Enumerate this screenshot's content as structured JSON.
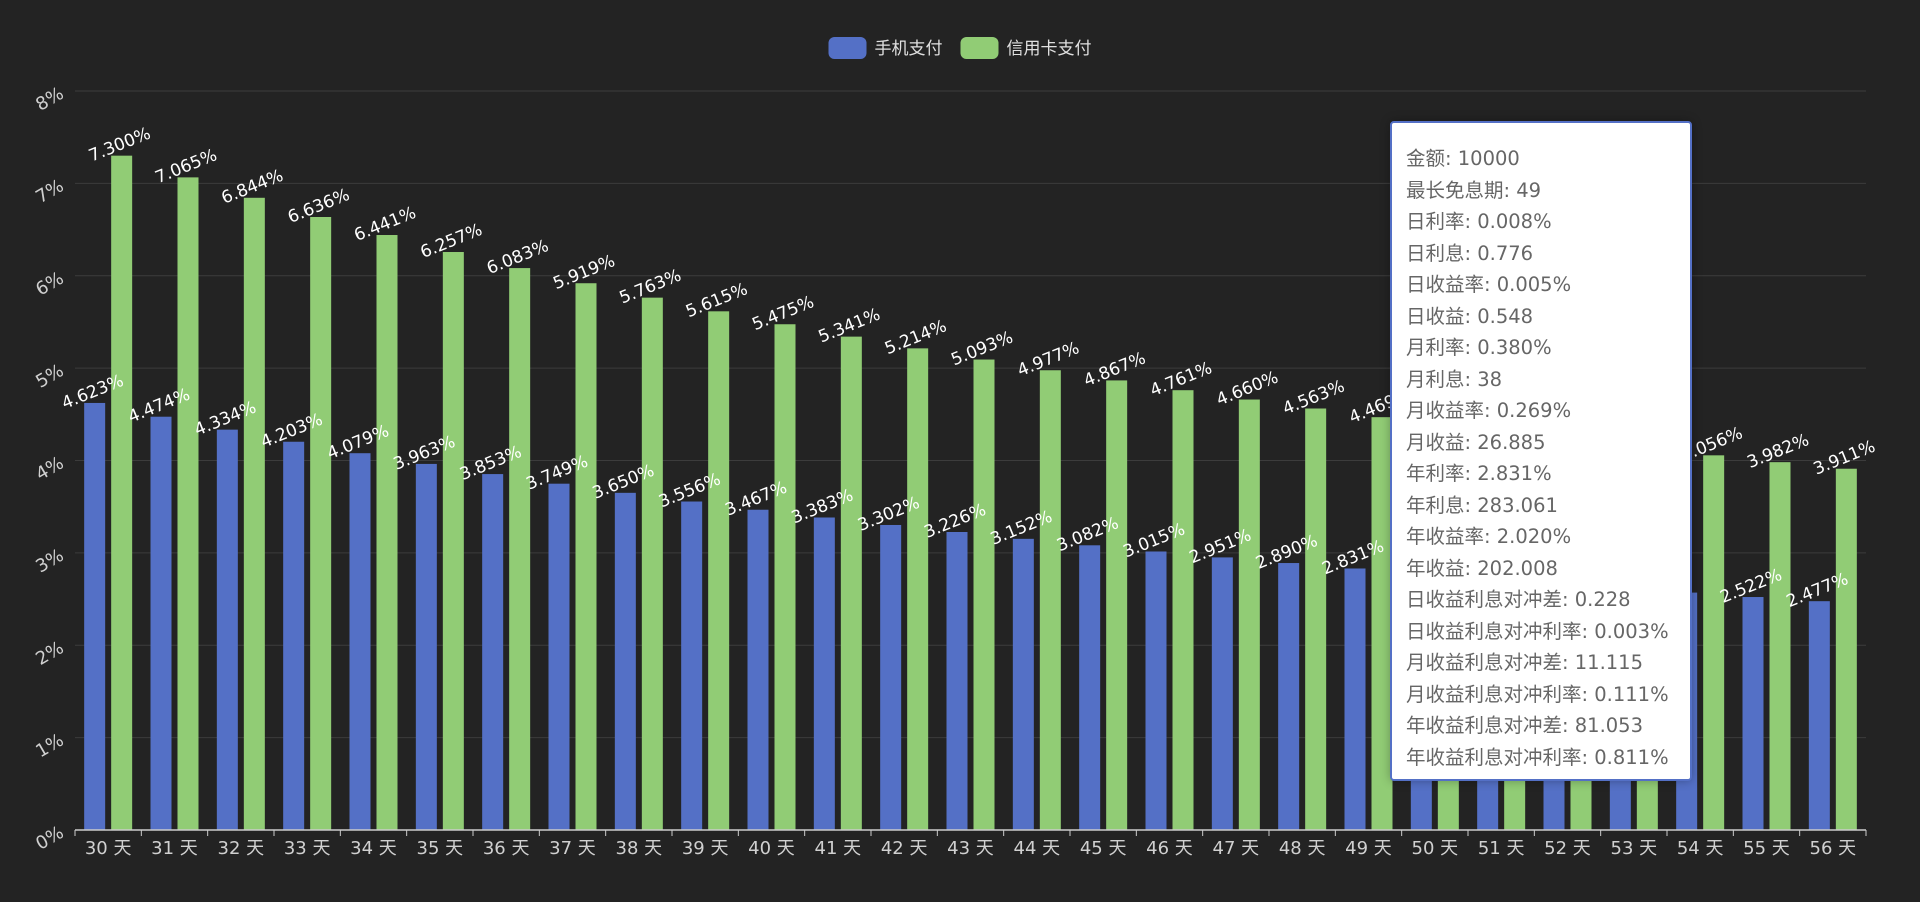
{
  "chart_data": {
    "type": "bar",
    "categories": [
      "30 天",
      "31 天",
      "32 天",
      "33 天",
      "34 天",
      "35 天",
      "36 天",
      "37 天",
      "38 天",
      "39 天",
      "40 天",
      "41 天",
      "42 天",
      "43 天",
      "44 天",
      "45 天",
      "46 天",
      "47 天",
      "48 天",
      "49 天",
      "50 天",
      "51 天",
      "52 天",
      "53 天",
      "54 天",
      "55 天",
      "56 天"
    ],
    "series": [
      {
        "name": "手机支付",
        "color": "#5470c6",
        "values": [
          4.623,
          4.474,
          4.334,
          4.203,
          4.079,
          3.963,
          3.853,
          3.749,
          3.65,
          3.556,
          3.467,
          3.383,
          3.302,
          3.226,
          3.152,
          3.082,
          3.015,
          2.951,
          2.89,
          2.831,
          2.775,
          2.721,
          2.67,
          2.62,
          2.57,
          2.522,
          2.477
        ],
        "labels": [
          "4.623%",
          "4.474%",
          "4.334%",
          "4.203%",
          "4.079%",
          "3.963%",
          "3.853%",
          "3.749%",
          "3.650%",
          "3.556%",
          "3.467%",
          "3.383%",
          "3.302%",
          "3.226%",
          "3.152%",
          "3.082%",
          "3.015%",
          "2.951%",
          "2.890%",
          "2.831%",
          "",
          "",
          "",
          "",
          "",
          "2.522%",
          "2.477%"
        ]
      },
      {
        "name": "信用卡支付",
        "color": "#91cc75",
        "values": [
          7.3,
          7.065,
          6.844,
          6.636,
          6.441,
          6.257,
          6.083,
          5.919,
          5.763,
          5.615,
          5.475,
          5.341,
          5.214,
          5.093,
          4.977,
          4.867,
          4.761,
          4.66,
          4.563,
          4.469,
          4.38,
          4.294,
          4.211,
          4.132,
          4.056,
          3.982,
          3.911
        ],
        "labels": [
          "7.300%",
          "7.065%",
          "6.844%",
          "6.636%",
          "6.441%",
          "6.257%",
          "6.083%",
          "5.919%",
          "5.763%",
          "5.615%",
          "5.475%",
          "5.341%",
          "5.214%",
          "5.093%",
          "4.977%",
          "4.867%",
          "4.761%",
          "4.660%",
          "4.563%",
          "4.469%",
          "",
          "",
          "",
          "",
          "4.056%",
          "3.982%",
          "3.911%"
        ]
      }
    ],
    "yticks": [
      "0%",
      "1%",
      "2%",
      "3%",
      "4%",
      "5%",
      "6%",
      "7%",
      "8%"
    ],
    "ylim": [
      0,
      8
    ],
    "grid": true,
    "legend_position": "top-center",
    "colors": {
      "background": "#232323",
      "grid": "#3c3c3c",
      "axis": "#cccccc"
    }
  },
  "legend": [
    {
      "label": "手机支付",
      "color": "#5470c6"
    },
    {
      "label": "信用卡支付",
      "color": "#91cc75"
    }
  ],
  "tooltip": {
    "rows": [
      "金额: 10000",
      "最长免息期: 49",
      "日利率: 0.008%",
      "日利息: 0.776",
      "日收益率: 0.005%",
      "日收益: 0.548",
      "月利率: 0.380%",
      "月利息: 38",
      "月收益率: 0.269%",
      "月收益: 26.885",
      "年利率: 2.831%",
      "年利息: 283.061",
      "年收益率: 2.020%",
      "年收益: 202.008",
      "日收益利息对冲差: 0.228",
      "日收益利息对冲利率: 0.003%",
      "月收益利息对冲差: 11.115",
      "月收益利息对冲利率: 0.111%",
      "年收益利息对冲差: 81.053",
      "年收益利息对冲利率: 0.811%"
    ]
  }
}
